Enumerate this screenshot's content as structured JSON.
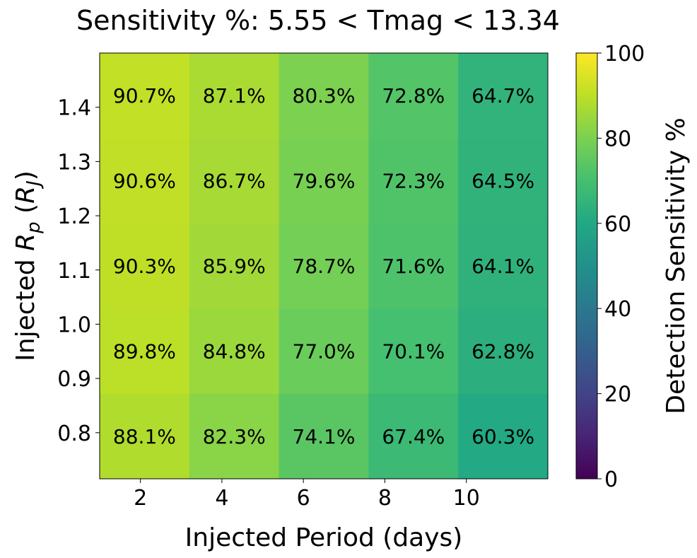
{
  "chart_data": {
    "type": "heatmap",
    "title": "Sensitivity %: 5.55 < Tmag < 13.34",
    "xlabel": "Injected Period (days)",
    "ylabel": "Injected Rp (RJ)",
    "ylabel_parts": {
      "prefix": "Injected ",
      "R": "R",
      "sub_p": "p",
      "open": " (",
      "sub_J": "J",
      "close": ")"
    },
    "colorbar_label": "Detection Sensitivity %",
    "colormap": "viridis",
    "color_range": [
      0,
      100
    ],
    "x_ticks": [
      2,
      4,
      6,
      8,
      10
    ],
    "y_ticks": [
      "0.8",
      "0.9",
      "1.0",
      "1.1",
      "1.2",
      "1.3",
      "1.4"
    ],
    "colorbar_ticks": [
      "0",
      "20",
      "40",
      "60",
      "80",
      "100"
    ],
    "xlim": [
      1.0,
      12.0
    ],
    "ylim": [
      0.715,
      1.5
    ],
    "x_edges": [
      1.0,
      3.2,
      5.4,
      7.6,
      9.8,
      12.0
    ],
    "y_edges": [
      0.715,
      0.872,
      1.029,
      1.186,
      1.343,
      1.5
    ],
    "rows": [
      {
        "label_values": [
          "88.1%",
          "82.3%",
          "74.1%",
          "67.4%",
          "60.3%"
        ],
        "values": [
          88.1,
          82.3,
          74.1,
          67.4,
          60.3
        ]
      },
      {
        "label_values": [
          "89.8%",
          "84.8%",
          "77.0%",
          "70.1%",
          "62.8%"
        ],
        "values": [
          89.8,
          84.8,
          77.0,
          70.1,
          62.8
        ]
      },
      {
        "label_values": [
          "90.3%",
          "85.9%",
          "78.7%",
          "71.6%",
          "64.1%"
        ],
        "values": [
          90.3,
          85.9,
          78.7,
          71.6,
          64.1
        ]
      },
      {
        "label_values": [
          "90.6%",
          "86.7%",
          "79.6%",
          "72.3%",
          "64.5%"
        ],
        "values": [
          90.6,
          86.7,
          79.6,
          72.3,
          64.5
        ]
      },
      {
        "label_values": [
          "90.7%",
          "87.1%",
          "80.3%",
          "72.8%",
          "64.7%"
        ],
        "values": [
          90.7,
          87.1,
          80.3,
          72.8,
          64.7
        ]
      }
    ]
  }
}
